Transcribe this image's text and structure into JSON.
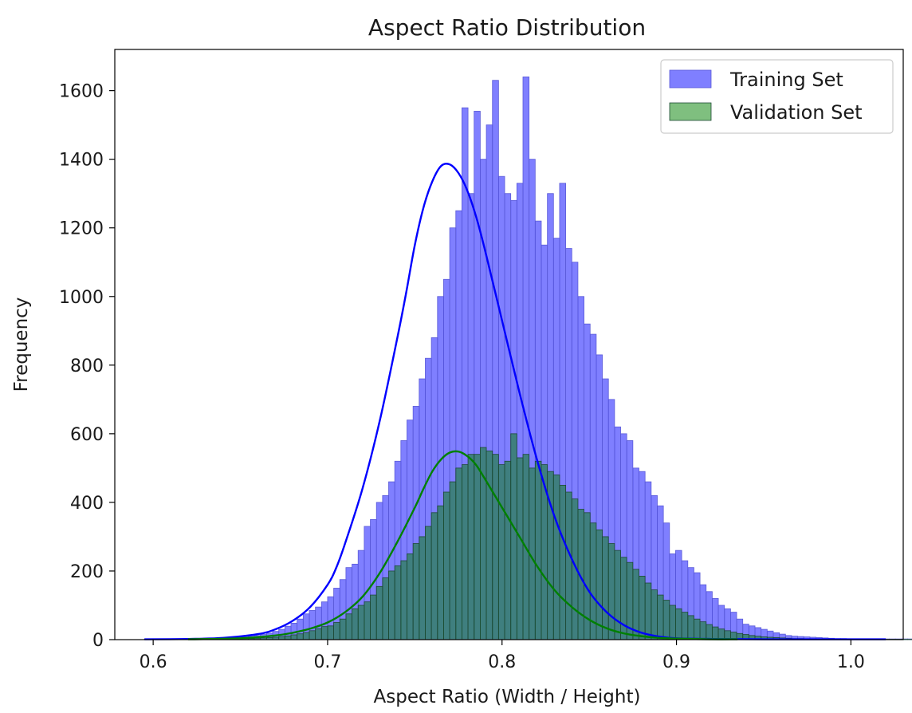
{
  "chart_data": {
    "type": "bar",
    "title": "Aspect Ratio Distribution",
    "xlabel": "Aspect Ratio (Width / Height)",
    "ylabel": "Frequency",
    "xlim": [
      0.578,
      1.03
    ],
    "ylim": [
      0,
      1720
    ],
    "xticks": [
      0.6,
      0.7,
      0.8,
      0.9,
      1.0
    ],
    "xtick_labels": [
      "0.6",
      "0.7",
      "0.8",
      "0.9",
      "1.0"
    ],
    "yticks": [
      0,
      200,
      400,
      600,
      800,
      1000,
      1200,
      1400,
      1600
    ],
    "ytick_labels": [
      "0",
      "200",
      "400",
      "600",
      "800",
      "1000",
      "1200",
      "1400",
      "1600"
    ],
    "grid": false,
    "legend": {
      "position": "top-right"
    },
    "series": [
      {
        "name": "Training Set",
        "color": "#0000ff",
        "kde_color": "#0000ff",
        "bin_start": 0.595,
        "bin_width": 0.0035,
        "values": [
          2,
          1,
          1,
          1,
          1,
          1,
          1,
          2,
          2,
          2,
          3,
          3,
          4,
          5,
          5,
          6,
          8,
          10,
          12,
          15,
          19,
          24,
          30,
          39,
          48,
          60,
          75,
          85,
          95,
          110,
          125,
          150,
          175,
          210,
          220,
          260,
          330,
          350,
          400,
          420,
          460,
          520,
          580,
          640,
          680,
          760,
          820,
          880,
          1000,
          1050,
          1200,
          1250,
          1550,
          1300,
          1540,
          1400,
          1500,
          1630,
          1350,
          1300,
          1280,
          1330,
          1640,
          1400,
          1220,
          1150,
          1300,
          1170,
          1330,
          1140,
          1100,
          1000,
          920,
          890,
          830,
          760,
          700,
          620,
          600,
          580,
          500,
          490,
          460,
          420,
          390,
          340,
          250,
          260,
          230,
          210,
          195,
          160,
          140,
          120,
          100,
          90,
          80,
          60,
          45,
          40,
          35,
          30,
          25,
          20,
          16,
          12,
          10,
          9,
          8,
          7,
          6,
          5,
          4,
          3,
          3,
          2,
          2,
          2,
          2,
          2,
          2,
          2,
          2,
          2,
          2,
          2,
          2,
          2,
          2,
          2,
          2,
          2,
          2,
          2,
          2,
          2,
          2,
          2,
          2,
          2,
          2,
          2,
          2,
          2,
          2,
          2,
          2,
          2,
          2,
          2,
          2,
          2,
          2,
          2,
          2,
          2,
          2
        ],
        "kde": [
          [
            0.595,
            1
          ],
          [
            0.62,
            2
          ],
          [
            0.64,
            5
          ],
          [
            0.66,
            16
          ],
          [
            0.67,
            30
          ],
          [
            0.68,
            55
          ],
          [
            0.69,
            95
          ],
          [
            0.7,
            160
          ],
          [
            0.705,
            210
          ],
          [
            0.71,
            280
          ],
          [
            0.72,
            440
          ],
          [
            0.73,
            640
          ],
          [
            0.74,
            880
          ],
          [
            0.745,
            1010
          ],
          [
            0.75,
            1150
          ],
          [
            0.755,
            1260
          ],
          [
            0.76,
            1335
          ],
          [
            0.765,
            1380
          ],
          [
            0.77,
            1385
          ],
          [
            0.775,
            1360
          ],
          [
            0.78,
            1310
          ],
          [
            0.785,
            1235
          ],
          [
            0.79,
            1140
          ],
          [
            0.8,
            930
          ],
          [
            0.81,
            720
          ],
          [
            0.82,
            525
          ],
          [
            0.83,
            360
          ],
          [
            0.84,
            235
          ],
          [
            0.85,
            140
          ],
          [
            0.86,
            80
          ],
          [
            0.87,
            42
          ],
          [
            0.88,
            20
          ],
          [
            0.89,
            9
          ],
          [
            0.9,
            4
          ],
          [
            0.92,
            2
          ],
          [
            0.95,
            1
          ],
          [
            1.0,
            1
          ],
          [
            1.02,
            1
          ]
        ]
      },
      {
        "name": "Validation Set",
        "color": "#008000",
        "kde_color": "#008000",
        "bin_start": 0.595,
        "bin_width": 0.0035,
        "values": [
          1,
          1,
          1,
          1,
          1,
          1,
          1,
          1,
          1,
          1,
          1,
          1,
          2,
          2,
          2,
          2,
          3,
          3,
          4,
          5,
          6,
          7,
          9,
          11,
          14,
          17,
          21,
          26,
          32,
          38,
          40,
          50,
          60,
          75,
          90,
          100,
          110,
          130,
          155,
          180,
          200,
          215,
          230,
          250,
          280,
          300,
          330,
          370,
          390,
          430,
          460,
          500,
          510,
          540,
          540,
          560,
          550,
          540,
          510,
          520,
          600,
          530,
          540,
          500,
          520,
          510,
          490,
          480,
          450,
          430,
          410,
          380,
          370,
          340,
          320,
          300,
          280,
          260,
          240,
          225,
          205,
          185,
          165,
          145,
          130,
          115,
          100,
          90,
          80,
          70,
          60,
          52,
          44,
          37,
          31,
          26,
          22,
          18,
          15,
          12,
          10,
          8,
          7,
          6,
          5,
          4,
          3,
          3,
          2,
          2,
          2,
          2,
          1,
          1,
          1,
          1,
          1,
          1,
          1,
          1,
          1,
          1,
          1,
          1,
          1,
          1,
          1,
          1,
          1,
          1,
          1,
          1,
          1,
          1,
          1,
          1,
          1,
          1,
          1,
          1,
          1,
          1,
          1,
          1,
          1,
          1
        ],
        "kde": [
          [
            0.62,
            1
          ],
          [
            0.65,
            4
          ],
          [
            0.67,
            12
          ],
          [
            0.68,
            20
          ],
          [
            0.69,
            32
          ],
          [
            0.7,
            50
          ],
          [
            0.71,
            80
          ],
          [
            0.72,
            125
          ],
          [
            0.73,
            195
          ],
          [
            0.74,
            285
          ],
          [
            0.75,
            385
          ],
          [
            0.755,
            440
          ],
          [
            0.76,
            490
          ],
          [
            0.765,
            525
          ],
          [
            0.77,
            545
          ],
          [
            0.775,
            548
          ],
          [
            0.78,
            535
          ],
          [
            0.785,
            510
          ],
          [
            0.79,
            470
          ],
          [
            0.8,
            385
          ],
          [
            0.81,
            300
          ],
          [
            0.82,
            215
          ],
          [
            0.83,
            145
          ],
          [
            0.84,
            95
          ],
          [
            0.85,
            58
          ],
          [
            0.86,
            33
          ],
          [
            0.87,
            18
          ],
          [
            0.88,
            10
          ],
          [
            0.89,
            5
          ],
          [
            0.9,
            3
          ],
          [
            0.92,
            1
          ],
          [
            0.935,
            1
          ]
        ]
      }
    ]
  }
}
